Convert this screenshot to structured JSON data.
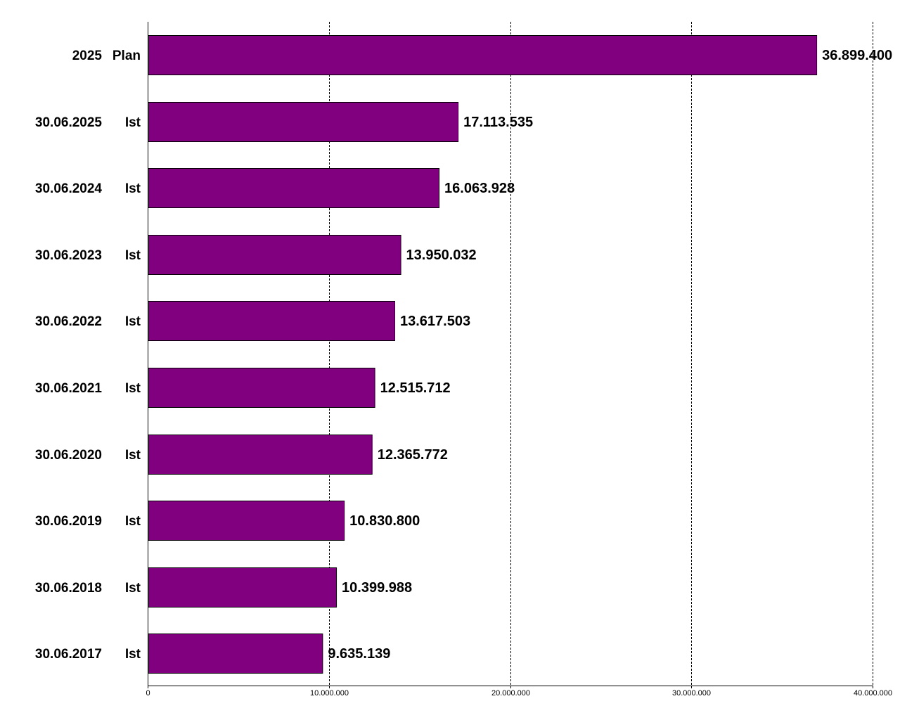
{
  "chart_data": {
    "type": "bar",
    "orientation": "horizontal",
    "title": "",
    "xlabel": "",
    "ylabel": "",
    "xlim": [
      0,
      40000000
    ],
    "grid": true,
    "legend": "none",
    "bar_color": "#800080",
    "categories": [
      {
        "date": "2025",
        "kind": "Plan",
        "value": 36899400,
        "value_label": "36.899.400"
      },
      {
        "date": "30.06.2025",
        "kind": "Ist",
        "value": 17113535,
        "value_label": "17.113.535"
      },
      {
        "date": "30.06.2024",
        "kind": "Ist",
        "value": 16063928,
        "value_label": "16.063.928"
      },
      {
        "date": "30.06.2023",
        "kind": "Ist",
        "value": 13950032,
        "value_label": "13.950.032"
      },
      {
        "date": "30.06.2022",
        "kind": "Ist",
        "value": 13617503,
        "value_label": "13.617.503"
      },
      {
        "date": "30.06.2021",
        "kind": "Ist",
        "value": 12515712,
        "value_label": "12.515.712"
      },
      {
        "date": "30.06.2020",
        "kind": "Ist",
        "value": 12365772,
        "value_label": "12.365.772"
      },
      {
        "date": "30.06.2019",
        "kind": "Ist",
        "value": 10830800,
        "value_label": "10.830.800"
      },
      {
        "date": "30.06.2018",
        "kind": "Ist",
        "value": 10399988,
        "value_label": "10.399.988"
      },
      {
        "date": "30.06.2017",
        "kind": "Ist",
        "value": 9635139,
        "value_label": "9.635.139"
      }
    ],
    "x_ticks": [
      {
        "value": 0,
        "label": "0"
      },
      {
        "value": 10000000,
        "label": "10.000.000"
      },
      {
        "value": 20000000,
        "label": "20.000.000"
      },
      {
        "value": 30000000,
        "label": "30.000.000"
      },
      {
        "value": 40000000,
        "label": "40.000.000"
      }
    ]
  }
}
